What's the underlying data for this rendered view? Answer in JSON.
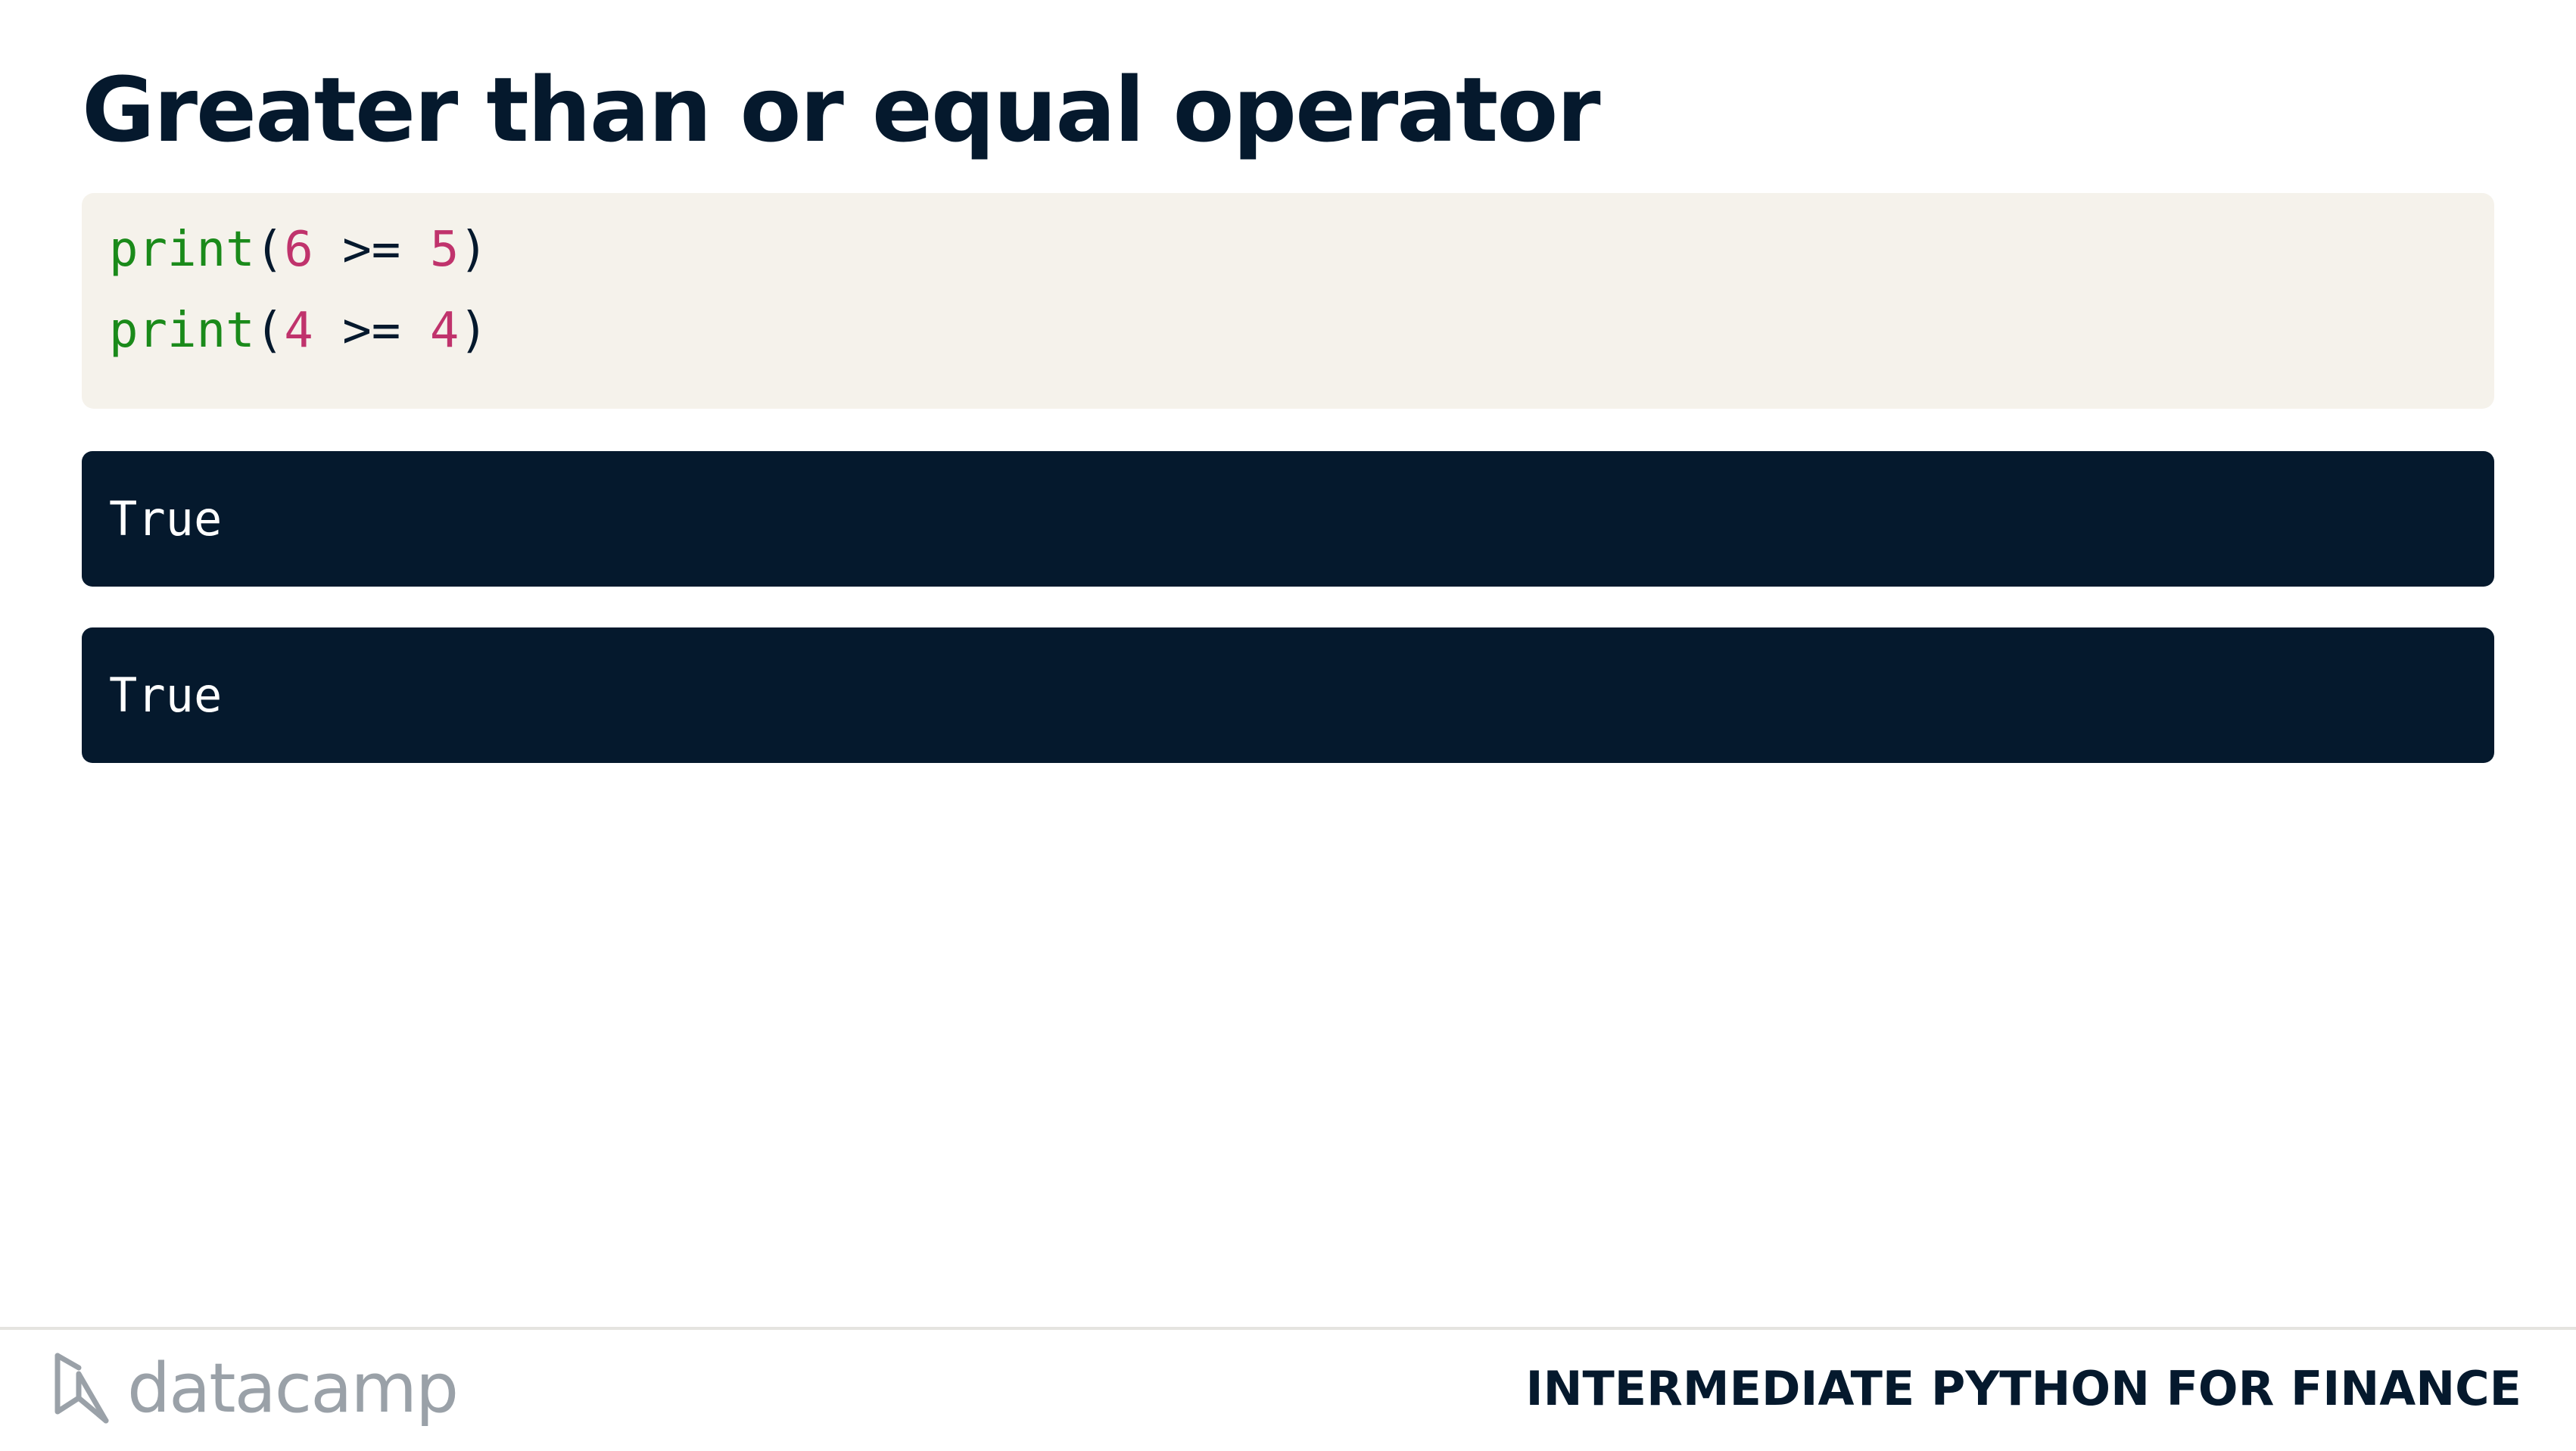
{
  "slide": {
    "title": "Greater than or equal operator"
  },
  "code": {
    "lines": [
      {
        "fn": "print",
        "open": "(",
        "left": "6",
        "op": " >= ",
        "right": "5",
        "close": ")"
      },
      {
        "fn": "print",
        "open": "(",
        "left": "4",
        "op": " >= ",
        "right": "4",
        "close": ")"
      }
    ]
  },
  "outputs": [
    "True",
    "True"
  ],
  "footer": {
    "logo_text": "datacamp",
    "logo_icon": "datacamp-logo-icon",
    "course_title": "INTERMEDIATE PYTHON FOR FINANCE"
  },
  "colors": {
    "title": "#05192d",
    "code_bg": "#f5f2eb",
    "function": "#1a8a1a",
    "number": "#c0336c",
    "output_bg": "#05192d",
    "output_text": "#ffffff",
    "logo": "#9aa1a8"
  }
}
